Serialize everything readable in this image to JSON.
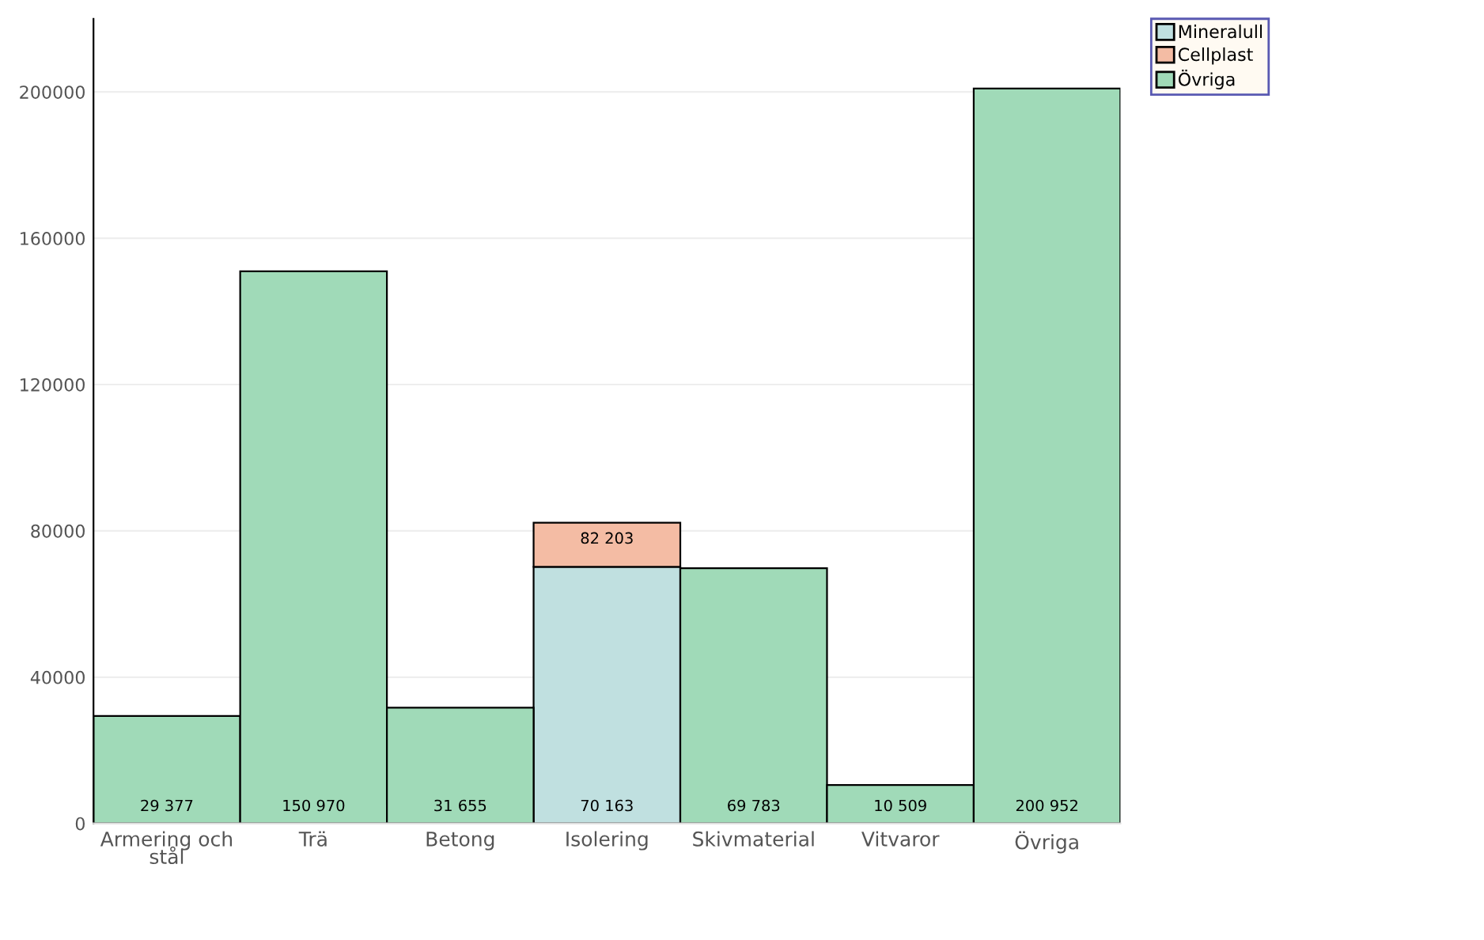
{
  "chart_data": {
    "type": "bar",
    "stacked": true,
    "categories": [
      "Armering och\nstål",
      "Trä",
      "Betong",
      "Isolering",
      "Skivmaterial",
      "Vitvaror",
      "Övriga"
    ],
    "series": [
      {
        "name": "Mineralull",
        "color": "#c0e0e0",
        "values": [
          null,
          null,
          null,
          70163,
          null,
          null,
          null
        ],
        "value_labels": [
          null,
          null,
          null,
          "70 163",
          null,
          null,
          null
        ]
      },
      {
        "name": "Cellplast",
        "color": "#f4bca4",
        "values": [
          null,
          null,
          null,
          12040,
          null,
          null,
          null
        ]
      },
      {
        "name": "Övriga",
        "color": "#a0dab8",
        "values": [
          29377,
          150970,
          31655,
          null,
          69783,
          10509,
          200952
        ],
        "value_labels": [
          "29 377",
          "150 970",
          "31 655",
          null,
          "69 783",
          "10 509",
          "200 952"
        ]
      }
    ],
    "totals": [
      null,
      null,
      null,
      "82 203",
      null,
      null,
      null
    ],
    "ylim": [
      0,
      220000
    ],
    "yticks": [
      0,
      40000,
      80000,
      120000,
      160000,
      200000
    ],
    "grid": "y",
    "legend": "right"
  }
}
